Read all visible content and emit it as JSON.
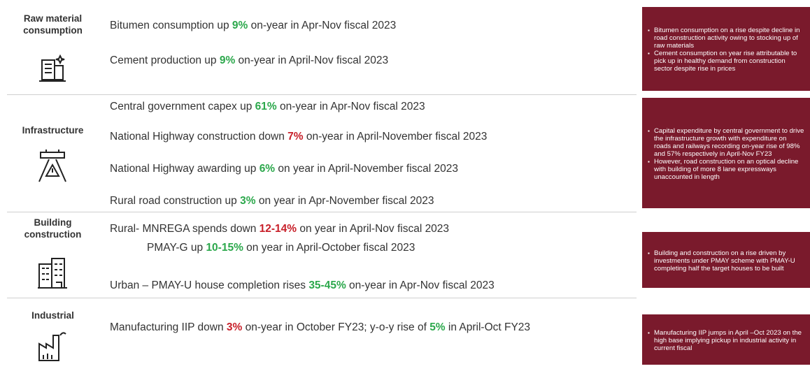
{
  "sections": [
    {
      "label": "Raw material consumption",
      "statements": [
        [
          {
            "text": "Bitumen consumption up "
          },
          {
            "text": "9%",
            "color": "#2ca84c"
          },
          {
            "text": " on-year in Apr-Nov fiscal 2023"
          }
        ],
        [
          {
            "text": "Cement production up "
          },
          {
            "text": "9%",
            "color": "#2ca84c"
          },
          {
            "text": " on-year in April-Nov fiscal 2023"
          }
        ]
      ],
      "notes": [
        "Bitumen consumption on a rise despite decline in road construction activity owing to stocking up of raw materials",
        "Cement consumption on year rise attributable to pick up in healthy demand from construction sector despite rise in prices"
      ]
    },
    {
      "label": "Infrastructure",
      "statements": [
        [
          {
            "text": "Central government capex up "
          },
          {
            "text": "61%",
            "color": "#2ca84c"
          },
          {
            "text": " on-year in Apr-Nov fiscal 2023"
          }
        ],
        [
          {
            "text": "National Highway construction down "
          },
          {
            "text": "7%",
            "color": "#c8202a"
          },
          {
            "text": " on-year in April-November fiscal 2023"
          }
        ],
        [
          {
            "text": "National Highway awarding up "
          },
          {
            "text": "6%",
            "color": "#2ca84c"
          },
          {
            "text": " on year in April-November fiscal 2023"
          }
        ],
        [
          {
            "text": "Rural road construction up "
          },
          {
            "text": "3%",
            "color": "#2ca84c"
          },
          {
            "text": " on year in Apr-November fiscal 2023"
          }
        ]
      ],
      "notes": [
        "Capital expenditure by central government to drive the infrastructure growth with expenditure on roads and railways recording on-year rise of 98% and 57% respectively in April-Nov FY23",
        "However, road construction on an optical decline with building of more 8 lane expressways unaccounted in length"
      ]
    },
    {
      "label": "Building construction",
      "statements": [
        [
          {
            "text": "Rural- MNREGA spends down "
          },
          {
            "text": "12-14%",
            "color": "#c8202a"
          },
          {
            "text": " on year in April-Nov fiscal 2023"
          }
        ],
        [
          {
            "text": "PMAY-G up "
          },
          {
            "text": "10-15%",
            "color": "#2ca84c"
          },
          {
            "text": " on year in April-October fiscal 2023"
          }
        ],
        [
          {
            "text": "Urban – PMAY-U house completion rises "
          },
          {
            "text": "35-45%",
            "color": "#2ca84c"
          },
          {
            "text": " on-year in Apr-Nov fiscal 2023"
          }
        ]
      ],
      "notes": [
        "Building and construction on a rise driven by investments under PMAY scheme with PMAY-U completing half the target houses to be built"
      ]
    },
    {
      "label": "Industrial",
      "statements": [
        [
          {
            "text": "Manufacturing IIP down "
          },
          {
            "text": "3%",
            "color": "#c8202a"
          },
          {
            "text": " on-year in October FY23; y-o-y rise of "
          },
          {
            "text": "5%",
            "color": "#2ca84c"
          },
          {
            "text": " in April-Oct FY23"
          }
        ]
      ],
      "notes": [
        "Manufacturing IIP jumps in April –Oct 2023 on the high base implying pickup in industrial activity in current fiscal"
      ]
    }
  ]
}
